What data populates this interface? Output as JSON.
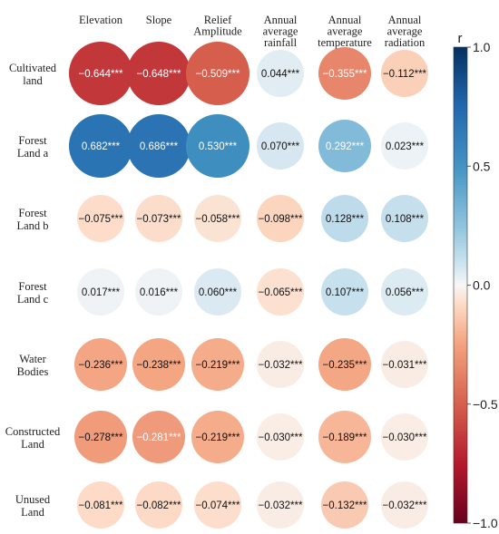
{
  "chart_data": {
    "type": "heatmap",
    "columns": [
      [
        "Elevation"
      ],
      [
        "Slope"
      ],
      [
        "Relief",
        "Amplitude"
      ],
      [
        "Annual",
        "average",
        "rainfall"
      ],
      [
        "Annual",
        "average",
        "temperature"
      ],
      [
        "Annual",
        "average",
        "radiation"
      ]
    ],
    "rows": [
      [
        "Cultivated",
        "land"
      ],
      [
        "Forest",
        "Land a"
      ],
      [
        "Forest",
        "Land b"
      ],
      [
        "Forest",
        "Land c"
      ],
      [
        "Water",
        "Bodies"
      ],
      [
        "Constructed",
        "Land"
      ],
      [
        "Unused",
        "Land"
      ]
    ],
    "values": [
      [
        -0.644,
        -0.648,
        -0.509,
        0.044,
        -0.355,
        -0.112
      ],
      [
        0.682,
        0.686,
        0.53,
        0.07,
        0.292,
        0.023
      ],
      [
        -0.075,
        -0.073,
        -0.058,
        -0.098,
        0.128,
        0.108
      ],
      [
        0.017,
        0.016,
        0.06,
        -0.065,
        0.107,
        0.056
      ],
      [
        -0.236,
        -0.238,
        -0.219,
        -0.032,
        -0.235,
        -0.031
      ],
      [
        -0.278,
        -0.281,
        -0.219,
        -0.03,
        -0.189,
        -0.03
      ],
      [
        -0.081,
        -0.082,
        -0.074,
        -0.032,
        -0.132,
        -0.032
      ]
    ],
    "labels": [
      [
        "−0.644***",
        "−0.648***",
        "−0.509***",
        "0.044***",
        "−0.355***",
        "−0.112***"
      ],
      [
        "0.682***",
        "0.686***",
        "0.530***",
        "0.070***",
        "0.292***",
        "0.023***"
      ],
      [
        "−0.075***",
        "−0.073***",
        "−0.058***",
        "−0.098***",
        "0.128***",
        "0.108***"
      ],
      [
        "0.017***",
        "0.016***",
        "0.060***",
        "−0.065***",
        "0.107***",
        "0.056***"
      ],
      [
        "−0.236***",
        "−0.238***",
        "−0.219***",
        "−0.032***",
        "−0.235***",
        "−0.031***"
      ],
      [
        "−0.278***",
        "−0.281***",
        "−0.219***",
        "−0.030***",
        "−0.189***",
        "−0.030***"
      ],
      [
        "−0.081***",
        "−0.082***",
        "−0.074***",
        "−0.032***",
        "−0.132***",
        "−0.032***"
      ]
    ],
    "colorbar": {
      "title": "r",
      "range": [
        -1.0,
        1.0
      ],
      "ticks": [
        1.0,
        0.5,
        0.0,
        -0.5,
        -1.0
      ],
      "tick_labels": [
        "1.0",
        "0.5",
        "0.0",
        "−0.5",
        "−1.0"
      ],
      "colors": {
        "neg_end": "#67001f",
        "neg_mid": "#d6604d",
        "neg_light": "#fddbc7",
        "zero": "#f7f7f7",
        "pos_light": "#d1e5f0",
        "pos_mid": "#4393c3",
        "pos_end": "#053061"
      }
    },
    "legend_placement": "right",
    "grid": false
  }
}
